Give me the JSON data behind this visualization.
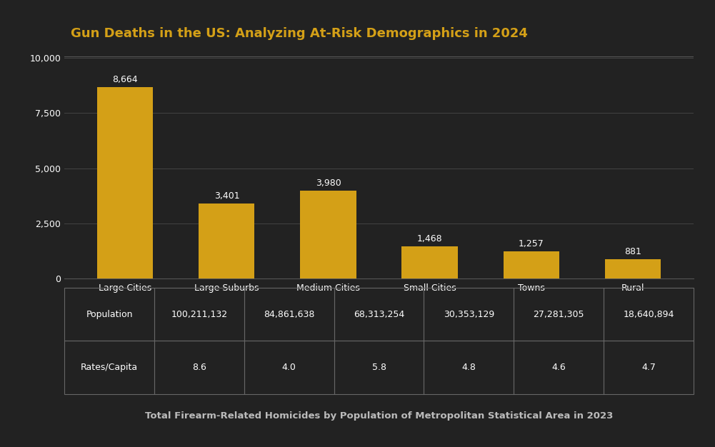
{
  "title": "Gun Deaths in the US: Analyzing At-Risk Demographics in 2024",
  "subtitle": "Total Firearm-Related Homicides by Population of Metropolitan Statistical Area in 2023",
  "categories": [
    "Large Cities",
    "Large Suburbs",
    "Medium Cities",
    "Small Cities",
    "Towns",
    "Rural"
  ],
  "values": [
    8664,
    3401,
    3980,
    1468,
    1257,
    881
  ],
  "bar_color": "#D4A017",
  "background_color": "#222222",
  "text_color": "#ffffff",
  "title_color": "#D4A017",
  "subtitle_color": "#bbbbbb",
  "grid_color": "#444444",
  "table_border_color": "#666666",
  "separator_color": "#555555",
  "ylim": [
    0,
    10000
  ],
  "yticks": [
    0,
    2500,
    5000,
    7500,
    10000
  ],
  "population": [
    "100,211,132",
    "84,861,638",
    "68,313,254",
    "30,353,129",
    "27,281,305",
    "18,640,894"
  ],
  "rates": [
    "8.6",
    "4.0",
    "5.8",
    "4.8",
    "4.6",
    "4.7"
  ],
  "row_labels": [
    "Population",
    "Rates/Capita"
  ]
}
